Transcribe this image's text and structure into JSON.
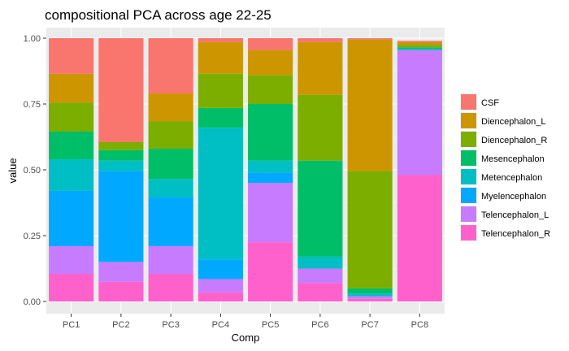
{
  "chart_data": {
    "type": "bar",
    "stacked": true,
    "title": "compositional PCA across age 22-25",
    "xlabel": "Comp",
    "ylabel": "value",
    "categories": [
      "PC1",
      "PC2",
      "PC3",
      "PC4",
      "PC5",
      "PC6",
      "PC7",
      "PC8"
    ],
    "ylim": [
      0,
      1
    ],
    "yticks": [
      "0.00",
      "0.25",
      "0.50",
      "0.75",
      "1.00"
    ],
    "grid": true,
    "legend_position": "right",
    "series": [
      {
        "name": "Telencephalon_R",
        "color": "#FF61CC",
        "values": [
          0.105,
          0.075,
          0.105,
          0.035,
          0.225,
          0.07,
          0.01,
          0.48
        ]
      },
      {
        "name": "Telencephalon_L",
        "color": "#C77CFF",
        "values": [
          0.105,
          0.075,
          0.105,
          0.05,
          0.225,
          0.055,
          0.01,
          0.475
        ]
      },
      {
        "name": "Myelencephalon",
        "color": "#00A9FF",
        "values": [
          0.21,
          0.345,
          0.185,
          0.075,
          0.04,
          0.0,
          0.0,
          0.0
        ]
      },
      {
        "name": "Metencephalon",
        "color": "#00BFC4",
        "values": [
          0.12,
          0.04,
          0.07,
          0.5,
          0.045,
          0.045,
          0.01,
          0.005
        ]
      },
      {
        "name": "Mesencephalon",
        "color": "#00BE67",
        "values": [
          0.105,
          0.04,
          0.115,
          0.075,
          0.215,
          0.365,
          0.02,
          0.005
        ]
      },
      {
        "name": "Diencephalon_R",
        "color": "#7CAE00",
        "values": [
          0.11,
          0.03,
          0.105,
          0.13,
          0.11,
          0.25,
          0.445,
          0.01
        ]
      },
      {
        "name": "Diencephalon_L",
        "color": "#CD9600",
        "values": [
          0.11,
          0.0,
          0.105,
          0.12,
          0.095,
          0.2,
          0.5,
          0.01
        ]
      },
      {
        "name": "CSF",
        "color": "#F8766D",
        "values": [
          0.135,
          0.395,
          0.21,
          0.015,
          0.045,
          0.015,
          0.005,
          0.005
        ]
      }
    ],
    "legend_order": [
      "CSF",
      "Diencephalon_L",
      "Diencephalon_R",
      "Mesencephalon",
      "Metencephalon",
      "Myelencephalon",
      "Telencephalon_L",
      "Telencephalon_R"
    ]
  }
}
